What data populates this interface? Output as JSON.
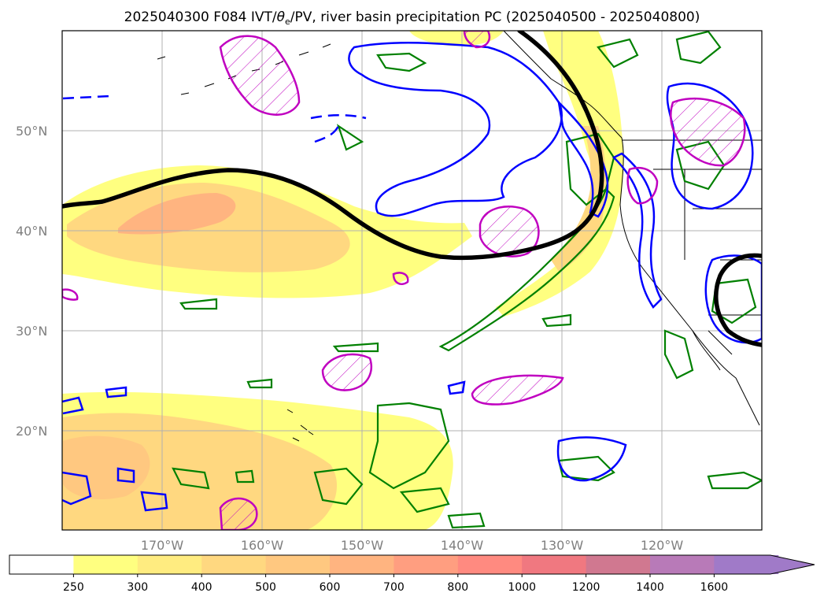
{
  "title": {
    "prefix": "2025040300 F084 IVT/",
    "symbol": "θ",
    "subscript": "e",
    "suffix": "/PV, river basin precipitation PC (2025040500 - 2025040800)"
  },
  "map": {
    "lon_range": [
      -180,
      -110
    ],
    "lat_range": [
      10,
      60
    ],
    "lat_ticks": [
      {
        "value": 50,
        "label": "50°N"
      },
      {
        "value": 40,
        "label": "40°N"
      },
      {
        "value": 30,
        "label": "30°N"
      },
      {
        "value": 20,
        "label": "20°N"
      }
    ],
    "lon_ticks": [
      {
        "value": -170,
        "label": "170°W"
      },
      {
        "value": -160,
        "label": "160°W"
      },
      {
        "value": -150,
        "label": "150°W"
      },
      {
        "value": -140,
        "label": "140°W"
      },
      {
        "value": -130,
        "label": "130°W"
      },
      {
        "value": -120,
        "label": "120°W"
      }
    ],
    "grid": true,
    "colors": {
      "grid": "#b0b0b0",
      "pv_contour": "#000000",
      "theta_e": "#0000ff",
      "precip_pc": "#008000",
      "magenta": "#c000c0",
      "coast": "#000000"
    }
  },
  "colorbar": {
    "levels": [
      "250",
      "300",
      "400",
      "500",
      "600",
      "700",
      "800",
      "1000",
      "1200",
      "1400",
      "1600"
    ],
    "colors": [
      "#ffffff",
      "#ffff80",
      "#ffec80",
      "#ffd880",
      "#ffc880",
      "#ffb480",
      "#ff9e80",
      "#ff8a80",
      "#f07880",
      "#d07890",
      "#b87ab8",
      "#a07ac8"
    ],
    "extend": "max"
  }
}
